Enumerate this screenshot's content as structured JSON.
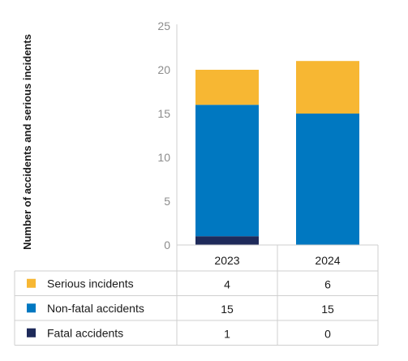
{
  "chart_data": {
    "type": "bar",
    "stacked": true,
    "ylabel": "Number of accidents and serious incidents",
    "ylim": [
      0,
      25
    ],
    "yticks": [
      0,
      5,
      10,
      15,
      20,
      25
    ],
    "categories": [
      "2023",
      "2024"
    ],
    "series": [
      {
        "name": "Fatal accidents",
        "values": [
          1,
          0
        ],
        "color": "#1e2a5a"
      },
      {
        "name": "Non-fatal accidents",
        "values": [
          15,
          15
        ],
        "color": "#0078c1"
      },
      {
        "name": "Serious incidents",
        "values": [
          4,
          6
        ],
        "color": "#f7b733"
      }
    ],
    "legend_order": [
      "Serious incidents",
      "Non-fatal accidents",
      "Fatal accidents"
    ],
    "grid": false,
    "legend": "data-table-below"
  }
}
